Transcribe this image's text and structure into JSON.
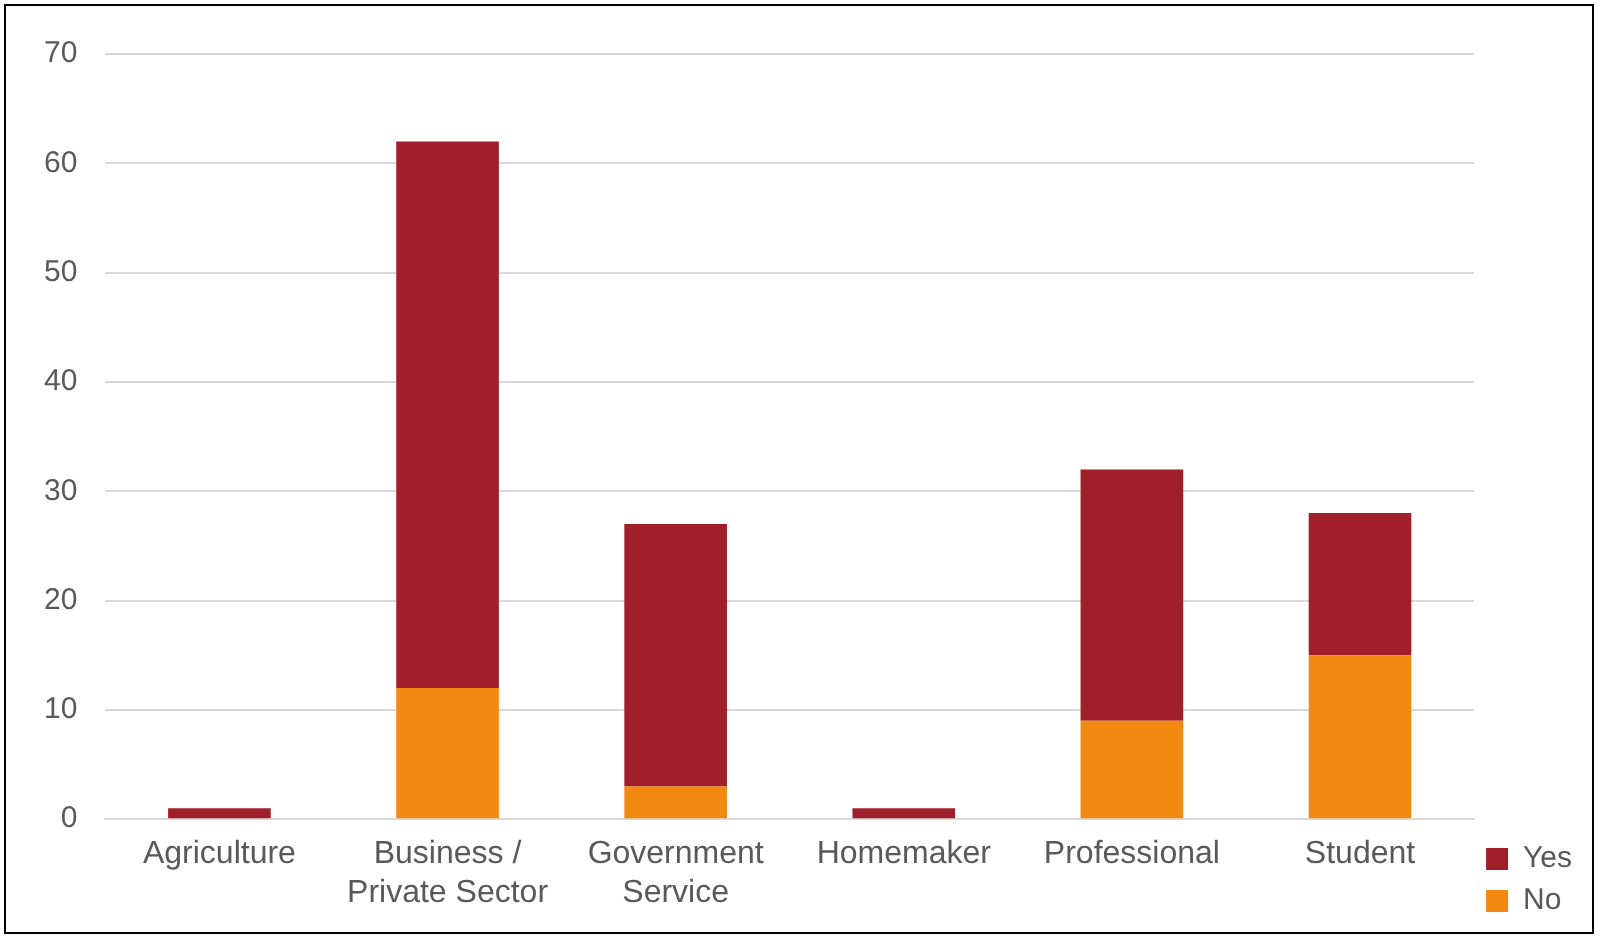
{
  "chart_data": {
    "type": "bar",
    "stacked": true,
    "categories": [
      "Agriculture",
      "Business / Private Sector",
      "Government Service",
      "Homemaker",
      "Professional",
      "Student"
    ],
    "series": [
      {
        "name": "No",
        "color": "#f28a12",
        "values": [
          0,
          12,
          3,
          0,
          9,
          15
        ]
      },
      {
        "name": "Yes",
        "color": "#a11f2b",
        "values": [
          1,
          50,
          24,
          1,
          23,
          13
        ]
      }
    ],
    "ylim": [
      0,
      70
    ],
    "yticks": [
      0,
      10,
      20,
      30,
      40,
      50,
      60,
      70
    ],
    "grid": "y",
    "legend": "right"
  }
}
